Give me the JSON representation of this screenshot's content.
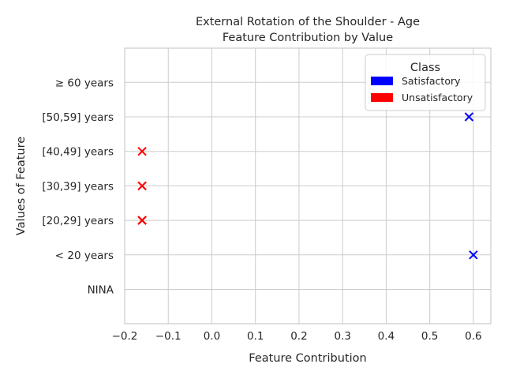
{
  "chart_data": {
    "type": "scatter",
    "title": [
      "External Rotation of the Shoulder - Age",
      "Feature Contribution by Value"
    ],
    "xlabel": "Feature Contribution",
    "ylabel": "Values of Feature",
    "xlim": [
      -0.2,
      0.64
    ],
    "xticks": [
      -0.2,
      -0.1,
      0.0,
      0.1,
      0.2,
      0.3,
      0.4,
      0.5,
      0.6
    ],
    "xtick_labels": [
      "−0.2",
      "−0.1",
      "0.0",
      "0.1",
      "0.2",
      "0.3",
      "0.4",
      "0.5",
      "0.6"
    ],
    "categories": [
      "NINA",
      "< 20 years",
      "[20,29] years",
      "[30,39] years",
      "[40,49] years",
      "[50,59] years",
      "≥ 60 years"
    ],
    "grid": true,
    "legend": {
      "title": "Class",
      "placement": "top-right",
      "entries": [
        {
          "label": "Satisfactory",
          "color": "#0000ff"
        },
        {
          "label": "Unsatisfactory",
          "color": "#ff0000"
        }
      ]
    },
    "series": [
      {
        "name": "Satisfactory",
        "color": "#0000ff",
        "marker": "x",
        "points": [
          {
            "x": 0.6,
            "y": "< 20 years"
          },
          {
            "x": 0.59,
            "y": "[50,59] years"
          }
        ]
      },
      {
        "name": "Unsatisfactory",
        "color": "#ff0000",
        "marker": "x",
        "points": [
          {
            "x": -0.16,
            "y": "[20,29] years"
          },
          {
            "x": -0.16,
            "y": "[20,29] years"
          },
          {
            "x": -0.16,
            "y": "[20,29] years"
          },
          {
            "x": -0.16,
            "y": "[30,39] years"
          },
          {
            "x": -0.16,
            "y": "[30,39] years"
          },
          {
            "x": -0.16,
            "y": "[40,49] years"
          }
        ]
      }
    ]
  }
}
